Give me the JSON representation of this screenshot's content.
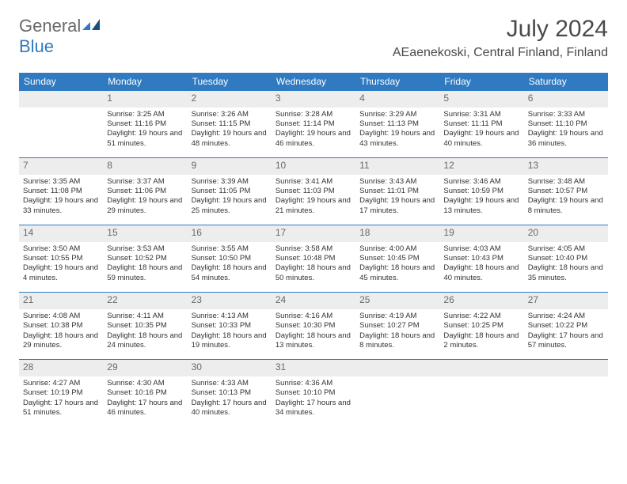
{
  "logo": {
    "word1": "General",
    "word2": "Blue"
  },
  "title": "July 2024",
  "location": "AEaenekoski, Central Finland, Finland",
  "colors": {
    "header_bg": "#2f7ac0",
    "header_text": "#ffffff",
    "border": "#2f7ac0",
    "daynum_bg": "#ededed",
    "daynum_color": "#6a6a6a",
    "body_text": "#333333",
    "logo_gray": "#6a6a6a",
    "logo_blue": "#2f7ac0"
  },
  "day_headers": [
    "Sunday",
    "Monday",
    "Tuesday",
    "Wednesday",
    "Thursday",
    "Friday",
    "Saturday"
  ],
  "weeks": [
    [
      null,
      {
        "n": "1",
        "sr": "Sunrise: 3:25 AM",
        "ss": "Sunset: 11:16 PM",
        "dl": "Daylight: 19 hours and 51 minutes."
      },
      {
        "n": "2",
        "sr": "Sunrise: 3:26 AM",
        "ss": "Sunset: 11:15 PM",
        "dl": "Daylight: 19 hours and 48 minutes."
      },
      {
        "n": "3",
        "sr": "Sunrise: 3:28 AM",
        "ss": "Sunset: 11:14 PM",
        "dl": "Daylight: 19 hours and 46 minutes."
      },
      {
        "n": "4",
        "sr": "Sunrise: 3:29 AM",
        "ss": "Sunset: 11:13 PM",
        "dl": "Daylight: 19 hours and 43 minutes."
      },
      {
        "n": "5",
        "sr": "Sunrise: 3:31 AM",
        "ss": "Sunset: 11:11 PM",
        "dl": "Daylight: 19 hours and 40 minutes."
      },
      {
        "n": "6",
        "sr": "Sunrise: 3:33 AM",
        "ss": "Sunset: 11:10 PM",
        "dl": "Daylight: 19 hours and 36 minutes."
      }
    ],
    [
      {
        "n": "7",
        "sr": "Sunrise: 3:35 AM",
        "ss": "Sunset: 11:08 PM",
        "dl": "Daylight: 19 hours and 33 minutes."
      },
      {
        "n": "8",
        "sr": "Sunrise: 3:37 AM",
        "ss": "Sunset: 11:06 PM",
        "dl": "Daylight: 19 hours and 29 minutes."
      },
      {
        "n": "9",
        "sr": "Sunrise: 3:39 AM",
        "ss": "Sunset: 11:05 PM",
        "dl": "Daylight: 19 hours and 25 minutes."
      },
      {
        "n": "10",
        "sr": "Sunrise: 3:41 AM",
        "ss": "Sunset: 11:03 PM",
        "dl": "Daylight: 19 hours and 21 minutes."
      },
      {
        "n": "11",
        "sr": "Sunrise: 3:43 AM",
        "ss": "Sunset: 11:01 PM",
        "dl": "Daylight: 19 hours and 17 minutes."
      },
      {
        "n": "12",
        "sr": "Sunrise: 3:46 AM",
        "ss": "Sunset: 10:59 PM",
        "dl": "Daylight: 19 hours and 13 minutes."
      },
      {
        "n": "13",
        "sr": "Sunrise: 3:48 AM",
        "ss": "Sunset: 10:57 PM",
        "dl": "Daylight: 19 hours and 8 minutes."
      }
    ],
    [
      {
        "n": "14",
        "sr": "Sunrise: 3:50 AM",
        "ss": "Sunset: 10:55 PM",
        "dl": "Daylight: 19 hours and 4 minutes."
      },
      {
        "n": "15",
        "sr": "Sunrise: 3:53 AM",
        "ss": "Sunset: 10:52 PM",
        "dl": "Daylight: 18 hours and 59 minutes."
      },
      {
        "n": "16",
        "sr": "Sunrise: 3:55 AM",
        "ss": "Sunset: 10:50 PM",
        "dl": "Daylight: 18 hours and 54 minutes."
      },
      {
        "n": "17",
        "sr": "Sunrise: 3:58 AM",
        "ss": "Sunset: 10:48 PM",
        "dl": "Daylight: 18 hours and 50 minutes."
      },
      {
        "n": "18",
        "sr": "Sunrise: 4:00 AM",
        "ss": "Sunset: 10:45 PM",
        "dl": "Daylight: 18 hours and 45 minutes."
      },
      {
        "n": "19",
        "sr": "Sunrise: 4:03 AM",
        "ss": "Sunset: 10:43 PM",
        "dl": "Daylight: 18 hours and 40 minutes."
      },
      {
        "n": "20",
        "sr": "Sunrise: 4:05 AM",
        "ss": "Sunset: 10:40 PM",
        "dl": "Daylight: 18 hours and 35 minutes."
      }
    ],
    [
      {
        "n": "21",
        "sr": "Sunrise: 4:08 AM",
        "ss": "Sunset: 10:38 PM",
        "dl": "Daylight: 18 hours and 29 minutes."
      },
      {
        "n": "22",
        "sr": "Sunrise: 4:11 AM",
        "ss": "Sunset: 10:35 PM",
        "dl": "Daylight: 18 hours and 24 minutes."
      },
      {
        "n": "23",
        "sr": "Sunrise: 4:13 AM",
        "ss": "Sunset: 10:33 PM",
        "dl": "Daylight: 18 hours and 19 minutes."
      },
      {
        "n": "24",
        "sr": "Sunrise: 4:16 AM",
        "ss": "Sunset: 10:30 PM",
        "dl": "Daylight: 18 hours and 13 minutes."
      },
      {
        "n": "25",
        "sr": "Sunrise: 4:19 AM",
        "ss": "Sunset: 10:27 PM",
        "dl": "Daylight: 18 hours and 8 minutes."
      },
      {
        "n": "26",
        "sr": "Sunrise: 4:22 AM",
        "ss": "Sunset: 10:25 PM",
        "dl": "Daylight: 18 hours and 2 minutes."
      },
      {
        "n": "27",
        "sr": "Sunrise: 4:24 AM",
        "ss": "Sunset: 10:22 PM",
        "dl": "Daylight: 17 hours and 57 minutes."
      }
    ],
    [
      {
        "n": "28",
        "sr": "Sunrise: 4:27 AM",
        "ss": "Sunset: 10:19 PM",
        "dl": "Daylight: 17 hours and 51 minutes."
      },
      {
        "n": "29",
        "sr": "Sunrise: 4:30 AM",
        "ss": "Sunset: 10:16 PM",
        "dl": "Daylight: 17 hours and 46 minutes."
      },
      {
        "n": "30",
        "sr": "Sunrise: 4:33 AM",
        "ss": "Sunset: 10:13 PM",
        "dl": "Daylight: 17 hours and 40 minutes."
      },
      {
        "n": "31",
        "sr": "Sunrise: 4:36 AM",
        "ss": "Sunset: 10:10 PM",
        "dl": "Daylight: 17 hours and 34 minutes."
      },
      null,
      null,
      null
    ]
  ]
}
